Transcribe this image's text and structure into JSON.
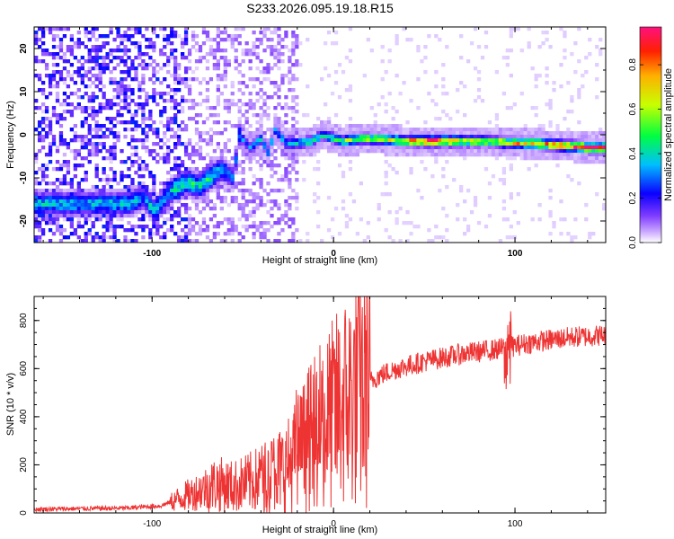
{
  "title": "S233.2026.095.19.18.R15",
  "chart_data": [
    {
      "type": "heatmap",
      "name": "spectrogram",
      "xlabel": "Height of straight line (km)",
      "ylabel": "Frequency (Hz)",
      "xlim": [
        -165,
        150
      ],
      "ylim": [
        -25,
        25
      ],
      "xticks": [
        -100,
        0,
        100
      ],
      "yticks": [
        -20,
        -10,
        0,
        10,
        20
      ],
      "colorbar": {
        "label": "Normalized spectral amplitude",
        "range": [
          0,
          0.97
        ],
        "ticks": [
          0.0,
          0.2,
          0.4,
          0.6,
          0.8
        ],
        "stops": [
          {
            "v": 0.0,
            "c": "#ffffff"
          },
          {
            "v": 0.05,
            "c": "#c9a6ff"
          },
          {
            "v": 0.12,
            "c": "#7f3cff"
          },
          {
            "v": 0.22,
            "c": "#0b00ff"
          },
          {
            "v": 0.35,
            "c": "#00bfff"
          },
          {
            "v": 0.48,
            "c": "#00ff40"
          },
          {
            "v": 0.62,
            "c": "#c8ff00"
          },
          {
            "v": 0.75,
            "c": "#ffb000"
          },
          {
            "v": 0.86,
            "c": "#ff2000"
          },
          {
            "v": 0.97,
            "c": "#ff1080"
          }
        ]
      },
      "ridge": [
        {
          "x": -112,
          "f": -16,
          "a": 0.35
        },
        {
          "x": -105,
          "f": -14.5,
          "a": 0.3
        },
        {
          "x": -98,
          "f": -18,
          "a": 0.38
        },
        {
          "x": -92,
          "f": -14,
          "a": 0.3
        },
        {
          "x": -86,
          "f": -12,
          "a": 0.42
        },
        {
          "x": -80,
          "f": -11,
          "a": 0.45
        },
        {
          "x": -74,
          "f": -12,
          "a": 0.4
        },
        {
          "x": -68,
          "f": -10,
          "a": 0.45
        },
        {
          "x": -62,
          "f": -8,
          "a": 0.35
        },
        {
          "x": -55,
          "f": -10,
          "a": 0.25
        },
        {
          "x": -52,
          "f": 0,
          "a": 0.3
        },
        {
          "x": -46,
          "f": -3,
          "a": 0.3
        },
        {
          "x": -40,
          "f": -1,
          "a": 0.4
        },
        {
          "x": -36,
          "f": -4,
          "a": 0.35
        },
        {
          "x": -32,
          "f": 1,
          "a": 0.35
        },
        {
          "x": -26,
          "f": -2,
          "a": 0.35
        },
        {
          "x": -20,
          "f": -2,
          "a": 0.35
        },
        {
          "x": -12,
          "f": -1.5,
          "a": 0.45
        },
        {
          "x": -6,
          "f": 0,
          "a": 0.4
        },
        {
          "x": 5,
          "f": -1.5,
          "a": 0.5
        },
        {
          "x": 15,
          "f": -1,
          "a": 0.6
        },
        {
          "x": 25,
          "f": -1,
          "a": 0.55
        },
        {
          "x": 40,
          "f": -1.5,
          "a": 0.7
        },
        {
          "x": 55,
          "f": -1.5,
          "a": 0.85
        },
        {
          "x": 70,
          "f": -1.5,
          "a": 0.7
        },
        {
          "x": 85,
          "f": -1.5,
          "a": 0.6
        },
        {
          "x": 95,
          "f": -1.8,
          "a": 0.65
        },
        {
          "x": 110,
          "f": -2,
          "a": 0.75
        },
        {
          "x": 125,
          "f": -2.5,
          "a": 0.8
        },
        {
          "x": 140,
          "f": -3,
          "a": 0.9
        }
      ]
    },
    {
      "type": "line",
      "name": "snr",
      "xlabel": "Height of straight line (km)",
      "ylabel": "SNR (10 * v/v)",
      "xlim": [
        -165,
        150
      ],
      "ylim": [
        0,
        900
      ],
      "xticks": [
        -100,
        0,
        100
      ],
      "yticks": [
        0,
        200,
        400,
        600,
        800
      ],
      "color": "#ee3333",
      "series": [
        {
          "x": -165,
          "y": 15
        },
        {
          "x": -140,
          "y": 18
        },
        {
          "x": -115,
          "y": 20
        },
        {
          "x": -95,
          "y": 30
        },
        {
          "x": -85,
          "y": 60
        },
        {
          "x": -75,
          "y": 90
        },
        {
          "x": -65,
          "y": 120
        },
        {
          "x": -55,
          "y": 110
        },
        {
          "x": -45,
          "y": 130
        },
        {
          "x": -35,
          "y": 160
        },
        {
          "x": -25,
          "y": 200
        },
        {
          "x": -15,
          "y": 290
        },
        {
          "x": -5,
          "y": 370
        },
        {
          "x": 5,
          "y": 450
        },
        {
          "x": 15,
          "y": 520
        },
        {
          "x": 25,
          "y": 570
        },
        {
          "x": 35,
          "y": 600
        },
        {
          "x": 50,
          "y": 630
        },
        {
          "x": 70,
          "y": 660
        },
        {
          "x": 90,
          "y": 680
        },
        {
          "x": 110,
          "y": 710
        },
        {
          "x": 130,
          "y": 730
        },
        {
          "x": 150,
          "y": 740
        }
      ]
    }
  ]
}
